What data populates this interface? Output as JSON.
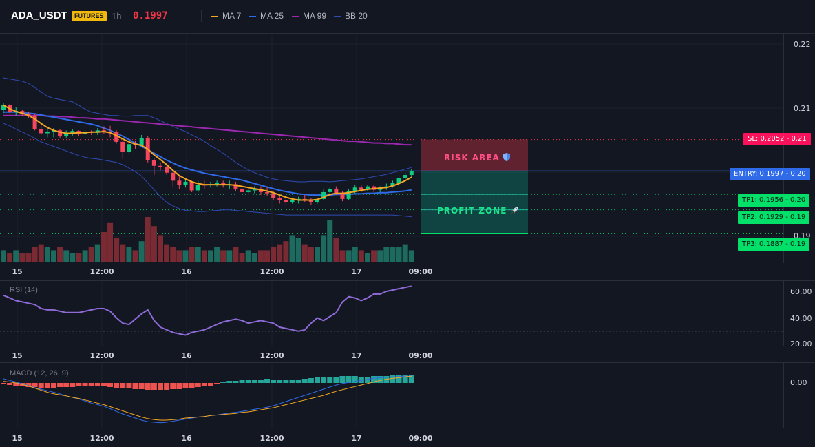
{
  "header": {
    "symbol": "ADA_USDT",
    "market_badge": "FUTURES",
    "interval": "1h",
    "last_price": "0.1997",
    "indicators": [
      {
        "label": "MA 7",
        "color": "#f5a623"
      },
      {
        "label": "MA 25",
        "color": "#2f6be8"
      },
      {
        "label": "MA 99",
        "color": "#9c27b0"
      },
      {
        "label": "BB 20",
        "color": "#2f4bb4"
      }
    ]
  },
  "price_axis": [
    "0.22",
    "0.21",
    "0.19"
  ],
  "trade_levels": {
    "sl": {
      "tag": "SL: 0.2052",
      "axis": "0.21",
      "price": 0.2052,
      "color": "#f23645"
    },
    "entry": {
      "tag": "ENTRY: 0.1997",
      "axis": "0.20",
      "price": 0.1997,
      "color": "#2f6be8"
    },
    "tp1": {
      "tag": "TP1: 0.1956",
      "axis": "0.20",
      "price": 0.1956,
      "color": "#02e06a"
    },
    "tp2": {
      "tag": "TP2: 0.1929",
      "axis": "0.19",
      "price": 0.1929,
      "color": "#02e06a"
    },
    "tp3": {
      "tag": "TP3: 0.1887",
      "axis": "0.19",
      "price": 0.1887,
      "color": "#02e06a"
    }
  },
  "zones": {
    "risk_label": "RISK AREA",
    "risk_icon": "shield-icon",
    "profit_label": "PROFIT ZONE",
    "profit_icon": "rocket-icon"
  },
  "time_axis": [
    "15",
    "12:00",
    "16",
    "12:00",
    "17",
    "09:00"
  ],
  "rsi": {
    "title": "RSI (14)",
    "axis": [
      "60.00",
      "40.00",
      "20.00"
    ]
  },
  "macd": {
    "title": "MACD (12, 26, 9)",
    "axis": [
      "0.00"
    ]
  },
  "chart_data": {
    "type": "candlestick",
    "price_range": [
      0.1884,
      0.2219
    ],
    "candles": [
      [
        0.2104,
        0.2116,
        0.2098,
        0.2112
      ],
      [
        0.2112,
        0.2114,
        0.2098,
        0.21
      ],
      [
        0.21,
        0.2108,
        0.2094,
        0.2102
      ],
      [
        0.2102,
        0.2104,
        0.2093,
        0.2096
      ],
      [
        0.2096,
        0.21,
        0.209,
        0.2094
      ],
      [
        0.2094,
        0.2096,
        0.2068,
        0.207
      ],
      [
        0.207,
        0.2076,
        0.206,
        0.2063
      ],
      [
        0.2063,
        0.207,
        0.2056,
        0.2066
      ],
      [
        0.2066,
        0.2072,
        0.2056,
        0.2068
      ],
      [
        0.2068,
        0.207,
        0.2054,
        0.2058
      ],
      [
        0.2058,
        0.2068,
        0.2054,
        0.2064
      ],
      [
        0.2064,
        0.207,
        0.2059,
        0.2067
      ],
      [
        0.2067,
        0.2068,
        0.2058,
        0.2062
      ],
      [
        0.2062,
        0.2068,
        0.206,
        0.2066
      ],
      [
        0.2066,
        0.2068,
        0.206,
        0.2064
      ],
      [
        0.2064,
        0.2072,
        0.206,
        0.2068
      ],
      [
        0.2068,
        0.2075,
        0.2062,
        0.2066
      ],
      [
        0.2066,
        0.2076,
        0.2056,
        0.2065
      ],
      [
        0.2065,
        0.2068,
        0.2045,
        0.2048
      ],
      [
        0.2048,
        0.205,
        0.2018,
        0.203
      ],
      [
        0.203,
        0.2048,
        0.2026,
        0.2044
      ],
      [
        0.2044,
        0.205,
        0.2036,
        0.2042
      ],
      [
        0.2042,
        0.206,
        0.204,
        0.2055
      ],
      [
        0.2055,
        0.2058,
        0.2012,
        0.2016
      ],
      [
        0.2016,
        0.202,
        0.199,
        0.2006
      ],
      [
        0.2006,
        0.2012,
        0.1998,
        0.2004
      ],
      [
        0.2004,
        0.201,
        0.199,
        0.1994
      ],
      [
        0.1994,
        0.1998,
        0.197,
        0.198
      ],
      [
        0.198,
        0.199,
        0.1966,
        0.1972
      ],
      [
        0.1972,
        0.1982,
        0.1968,
        0.1978
      ],
      [
        0.1978,
        0.198,
        0.196,
        0.1963
      ],
      [
        0.1963,
        0.198,
        0.196,
        0.1973
      ],
      [
        0.1973,
        0.198,
        0.1966,
        0.1972
      ],
      [
        0.1972,
        0.1978,
        0.1968,
        0.1974
      ],
      [
        0.1974,
        0.198,
        0.197,
        0.1976
      ],
      [
        0.1976,
        0.198,
        0.1968,
        0.1972
      ],
      [
        0.1972,
        0.198,
        0.1966,
        0.1974
      ],
      [
        0.1974,
        0.1978,
        0.1962,
        0.1966
      ],
      [
        0.1966,
        0.197,
        0.1956,
        0.196
      ],
      [
        0.196,
        0.1966,
        0.1956,
        0.1963
      ],
      [
        0.1963,
        0.197,
        0.1958,
        0.1966
      ],
      [
        0.1966,
        0.197,
        0.1955,
        0.196
      ],
      [
        0.196,
        0.1968,
        0.1954,
        0.1958
      ],
      [
        0.1958,
        0.1962,
        0.1946,
        0.195
      ],
      [
        0.195,
        0.1955,
        0.194,
        0.1946
      ],
      [
        0.1946,
        0.195,
        0.1938,
        0.1943
      ],
      [
        0.1943,
        0.195,
        0.194,
        0.1946
      ],
      [
        0.1946,
        0.1952,
        0.194,
        0.1948
      ],
      [
        0.1948,
        0.1955,
        0.1942,
        0.1946
      ],
      [
        0.1946,
        0.195,
        0.1938,
        0.1942
      ],
      [
        0.1942,
        0.195,
        0.194,
        0.1948
      ],
      [
        0.1948,
        0.1965,
        0.1946,
        0.196
      ],
      [
        0.196,
        0.1968,
        0.1955,
        0.1965
      ],
      [
        0.1965,
        0.197,
        0.1955,
        0.1958
      ],
      [
        0.1958,
        0.1962,
        0.1944,
        0.1948
      ],
      [
        0.1948,
        0.1965,
        0.1946,
        0.1962
      ],
      [
        0.1962,
        0.1972,
        0.1958,
        0.1968
      ],
      [
        0.1968,
        0.1972,
        0.196,
        0.1964
      ],
      [
        0.1964,
        0.1972,
        0.1962,
        0.197
      ],
      [
        0.197,
        0.1972,
        0.196,
        0.1964
      ],
      [
        0.1964,
        0.197,
        0.196,
        0.1968
      ],
      [
        0.1968,
        0.1975,
        0.1964,
        0.197
      ],
      [
        0.197,
        0.198,
        0.1968,
        0.1976
      ],
      [
        0.1976,
        0.1988,
        0.1974,
        0.1984
      ],
      [
        0.1984,
        0.1994,
        0.198,
        0.199
      ],
      [
        0.199,
        0.2,
        0.1986,
        0.1997
      ]
    ],
    "volume": [
      4,
      3,
      4,
      3,
      3,
      5,
      6,
      5,
      4,
      5,
      4,
      3,
      3,
      4,
      5,
      6,
      10,
      13,
      8,
      6,
      5,
      4,
      7,
      15,
      12,
      9,
      6,
      5,
      4,
      4,
      5,
      5,
      4,
      4,
      5,
      4,
      4,
      5,
      3,
      4,
      3,
      4,
      4,
      5,
      6,
      7,
      9,
      8,
      6,
      5,
      5,
      9,
      14,
      8,
      4,
      4,
      5,
      4,
      3,
      4,
      4,
      5,
      5,
      5,
      6,
      4
    ],
    "ma7": [
      0.2112,
      0.2106,
      0.2101,
      0.2098,
      0.2094,
      0.2088,
      0.208,
      0.2073,
      0.2068,
      0.2065,
      0.2063,
      0.2063,
      0.2064,
      0.2064,
      0.2065,
      0.2065,
      0.2066,
      0.2064,
      0.2059,
      0.2053,
      0.2048,
      0.2044,
      0.2042,
      0.2035,
      0.2025,
      0.2017,
      0.2008,
      0.1998,
      0.1989,
      0.1983,
      0.1978,
      0.1975,
      0.1973,
      0.1973,
      0.1973,
      0.1973,
      0.1973,
      0.1972,
      0.197,
      0.1968,
      0.1966,
      0.1964,
      0.1962,
      0.1959,
      0.1955,
      0.1951,
      0.1948,
      0.1946,
      0.1946,
      0.1946,
      0.1947,
      0.1951,
      0.1956,
      0.1958,
      0.1958,
      0.1959,
      0.1961,
      0.1963,
      0.1965,
      0.1966,
      0.1967,
      0.1968,
      0.1971,
      0.1975,
      0.198,
      0.1986
    ],
    "ma25": [
      0.21,
      0.21,
      0.21,
      0.2099,
      0.2098,
      0.2097,
      0.2095,
      0.2093,
      0.2091,
      0.2089,
      0.2087,
      0.2085,
      0.2083,
      0.2081,
      0.2079,
      0.2076,
      0.2072,
      0.2068,
      0.2063,
      0.2058,
      0.2052,
      0.2046,
      0.204,
      0.2034,
      0.2028,
      0.2022,
      0.2016,
      0.2011,
      0.2006,
      0.2002,
      0.1999,
      0.1996,
      0.1993,
      0.1991,
      0.1989,
      0.1987,
      0.1985,
      0.1983,
      0.1981,
      0.1978,
      0.1975,
      0.1972,
      0.1969,
      0.1966,
      0.1963,
      0.1961,
      0.1959,
      0.1957,
      0.1956,
      0.1955,
      0.1955,
      0.1955,
      0.1955,
      0.1956,
      0.1956,
      0.1956,
      0.1957,
      0.1957,
      0.1958,
      0.1958,
      0.1959,
      0.1959,
      0.196,
      0.1961,
      0.1962,
      0.1964
    ],
    "ma99": [
      0.2094,
      0.2094,
      0.2094,
      0.2094,
      0.2094,
      0.2094,
      0.2094,
      0.2093,
      0.2093,
      0.2092,
      0.2092,
      0.2091,
      0.209,
      0.209,
      0.2089,
      0.2088,
      0.2088,
      0.2087,
      0.2086,
      0.2085,
      0.2084,
      0.2083,
      0.2082,
      0.2081,
      0.208,
      0.2079,
      0.2078,
      0.2077,
      0.2076,
      0.2075,
      0.2074,
      0.2073,
      0.2072,
      0.2071,
      0.207,
      0.2069,
      0.2068,
      0.2067,
      0.2066,
      0.2065,
      0.2064,
      0.2063,
      0.2062,
      0.2061,
      0.206,
      0.2059,
      0.2058,
      0.2057,
      0.2056,
      0.2055,
      0.2054,
      0.2053,
      0.2052,
      0.2051,
      0.205,
      0.2049,
      0.2049,
      0.2048,
      0.2047,
      0.2046,
      0.2046,
      0.2045,
      0.2045,
      0.2044,
      0.2043,
      0.2043
    ],
    "bb_upper": [
      0.216,
      0.2158,
      0.2156,
      0.2154,
      0.215,
      0.2143,
      0.2135,
      0.2128,
      0.2124,
      0.2122,
      0.212,
      0.2118,
      0.2112,
      0.2105,
      0.21,
      0.2098,
      0.2096,
      0.2094,
      0.2094,
      0.2093,
      0.2093,
      0.2094,
      0.2094,
      0.2094,
      0.209,
      0.2085,
      0.208,
      0.2075,
      0.207,
      0.2066,
      0.206,
      0.2055,
      0.2049,
      0.2041,
      0.2035,
      0.2028,
      0.202,
      0.2012,
      0.2005,
      0.1999,
      0.1994,
      0.199,
      0.1986,
      0.1983,
      0.1981,
      0.198,
      0.1979,
      0.1978,
      0.1978,
      0.1979,
      0.1979,
      0.1979,
      0.1978,
      0.1979,
      0.198,
      0.1981,
      0.1982,
      0.1983,
      0.1985,
      0.1987,
      0.1989,
      0.1991,
      0.1994,
      0.1997,
      0.2,
      0.2003
    ],
    "bb_lower": [
      0.208,
      0.2076,
      0.207,
      0.2065,
      0.206,
      0.2054,
      0.2048,
      0.2044,
      0.204,
      0.2036,
      0.2032,
      0.2028,
      0.2024,
      0.2021,
      0.2019,
      0.2018,
      0.2016,
      0.2014,
      0.2012,
      0.2008,
      0.2002,
      0.1996,
      0.1988,
      0.1976,
      0.1964,
      0.1952,
      0.1942,
      0.1936,
      0.1931,
      0.1928,
      0.1927,
      0.1926,
      0.1926,
      0.1927,
      0.1928,
      0.1929,
      0.1929,
      0.1928,
      0.1927,
      0.1926,
      0.1925,
      0.1924,
      0.1923,
      0.1922,
      0.1921,
      0.192,
      0.192,
      0.192,
      0.192,
      0.192,
      0.192,
      0.192,
      0.192,
      0.192,
      0.192,
      0.192,
      0.192,
      0.192,
      0.192,
      0.192,
      0.192,
      0.192,
      0.192,
      0.1919,
      0.1918,
      0.1917
    ],
    "rsi_values": [
      57,
      55,
      53,
      52,
      51,
      50,
      47,
      46,
      46,
      45,
      44,
      44,
      44,
      45,
      46,
      47,
      47,
      45,
      40,
      36,
      35,
      39,
      43,
      46,
      38,
      33,
      31,
      29,
      28,
      27,
      29,
      30,
      31,
      33,
      35,
      37,
      38,
      39,
      38,
      36,
      37,
      38,
      37,
      36,
      33,
      32,
      31,
      30,
      31,
      36,
      40,
      38,
      41,
      44,
      52,
      56,
      55,
      53,
      55,
      58,
      58,
      60,
      61,
      62,
      63,
      64
    ],
    "macd_hist": [
      -2,
      -3,
      -4,
      -5,
      -6,
      -6,
      -7,
      -7,
      -7,
      -6,
      -6,
      -6,
      -5,
      -5,
      -5,
      -5,
      -5,
      -6,
      -7,
      -8,
      -8,
      -9,
      -9,
      -10,
      -10,
      -10,
      -10,
      -9,
      -9,
      -8,
      -7,
      -6,
      -5,
      -4,
      -2,
      2,
      3,
      3,
      4,
      4,
      4,
      5,
      6,
      5,
      5,
      4,
      4,
      5,
      6,
      7,
      8,
      8,
      9,
      9,
      10,
      10,
      10,
      9,
      9,
      10,
      10,
      10,
      11,
      11,
      11,
      11
    ],
    "macd_line": [
      0.8,
      0.5,
      0.2,
      -0.2,
      -0.5,
      -0.9,
      -1.2,
      -1.5,
      -1.8,
      -2.1,
      -2.5,
      -2.8,
      -3.1,
      -3.5,
      -3.9,
      -4.2,
      -4.5,
      -5.0,
      -5.5,
      -6.0,
      -6.4,
      -6.8,
      -7.2,
      -7.5,
      -7.6,
      -7.7,
      -7.6,
      -7.4,
      -7.2,
      -7.0,
      -6.8,
      -6.6,
      -6.5,
      -6.3,
      -6.2,
      -6.0,
      -5.8,
      -5.7,
      -5.5,
      -5.3,
      -5.1,
      -4.9,
      -4.7,
      -4.4,
      -4.0,
      -3.6,
      -3.2,
      -2.8,
      -2.4,
      -2.0,
      -1.6,
      -1.2,
      -0.8,
      -0.4,
      -0.1,
      0.1,
      0.3,
      0.5,
      0.7,
      0.9,
      1.0,
      1.1,
      1.2,
      1.2,
      1.3,
      1.3
    ],
    "macd_signal": [
      0.3,
      0.2,
      0.0,
      -0.3,
      -0.6,
      -1.0,
      -1.4,
      -1.8,
      -2.1,
      -2.3,
      -2.5,
      -2.8,
      -3.0,
      -3.3,
      -3.6,
      -3.9,
      -4.2,
      -4.6,
      -5.0,
      -5.4,
      -5.8,
      -6.2,
      -6.6,
      -6.9,
      -7.1,
      -7.2,
      -7.2,
      -7.1,
      -7.0,
      -6.8,
      -6.7,
      -6.6,
      -6.5,
      -6.3,
      -6.2,
      -6.1,
      -6.0,
      -5.9,
      -5.7,
      -5.6,
      -5.4,
      -5.2,
      -5.0,
      -4.8,
      -4.5,
      -4.2,
      -3.9,
      -3.6,
      -3.3,
      -3.0,
      -2.7,
      -2.4,
      -2.0,
      -1.6,
      -1.3,
      -1.0,
      -0.7,
      -0.4,
      -0.1,
      0.2,
      0.5,
      0.7,
      0.9,
      1.0,
      1.2,
      1.3
    ]
  }
}
